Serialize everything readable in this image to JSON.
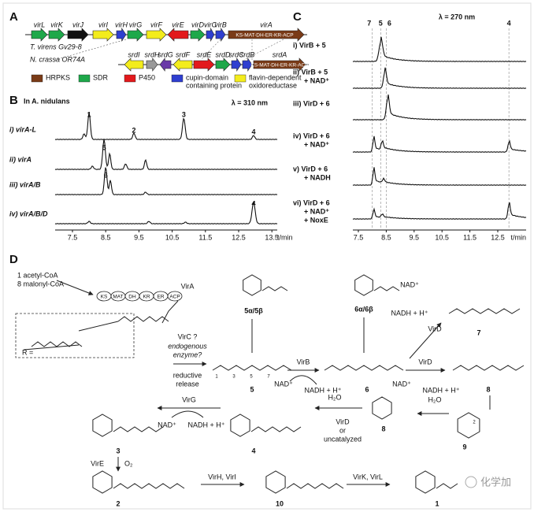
{
  "panel_a": {
    "label": "A",
    "cluster1": {
      "species": "T. virens Gv29-8",
      "genes": [
        "virL",
        "virK",
        "virJ",
        "virI",
        "virH",
        "virG",
        "virF",
        "virE",
        "virD",
        "virC",
        "virB",
        "virA"
      ],
      "domains": "KS-MAT-DH-ER-KR-ACP"
    },
    "cluster2": {
      "species": "N. crassa OR74A",
      "genes": [
        "srdI",
        "srdH",
        "srdG",
        "srdF",
        "srdE",
        "srdD",
        "srdC",
        "srdB",
        "srdA"
      ],
      "domains": "KS-MAT-DH-ER-KR-ACP"
    },
    "legend": [
      [
        "HRPKS"
      ],
      [
        "SDR"
      ],
      [
        "P450"
      ],
      [
        "cupin-domain",
        "containing protein"
      ],
      [
        "flavin-dependent",
        "oxidoreductase"
      ]
    ]
  },
  "panel_b": {
    "label": "B",
    "title": "In A. nidulans",
    "wavelength": "λ = 310 nm",
    "traces": [
      "i) virA-L",
      "ii) virA",
      "iii) virA/B",
      "iv) virA/B/D"
    ],
    "peaks": [
      "1",
      "2",
      "3",
      "4",
      "5",
      "6",
      "4"
    ],
    "ticks": [
      "7.5",
      "8.5",
      "9.5",
      "10.5",
      "11.5",
      "12.5",
      "13.5"
    ],
    "axis": "t/min"
  },
  "panel_c": {
    "label": "C",
    "wavelength": "λ = 270 nm",
    "peaks": [
      "7",
      "5",
      "6",
      "4"
    ],
    "traces": [
      [
        "i) VirB + 5"
      ],
      [
        "ii) VirB + 5",
        "+ NAD⁺"
      ],
      [
        "iii) VirD + 6"
      ],
      [
        "iv) VirD + 6",
        "+ NAD⁺"
      ],
      [
        "v) VirD + 6",
        "+ NADH"
      ],
      [
        "vi) VirD + 6",
        "+ NAD⁺",
        "+ NoxE"
      ]
    ],
    "ticks": [
      "7.5",
      "8.5",
      "9.5",
      "10.5",
      "11.5",
      "12.5"
    ],
    "axis": "t/min"
  },
  "panel_d": {
    "label": "D",
    "starter": [
      "1 acetyl-CoA",
      "8 malonyl-CoA"
    ],
    "pks": "VirA",
    "domains": [
      "KS",
      "MAT",
      "DH",
      "KR",
      "ER",
      "ACP"
    ],
    "r_label": "R =",
    "virc": [
      "VirC ?",
      "endogenous",
      "enzyme?"
    ],
    "release": [
      "reductive",
      "release"
    ],
    "compounds": [
      "5α/5β",
      "6α/6β",
      "7",
      "5",
      "6",
      "8",
      "9",
      "8",
      "4",
      "3",
      "2",
      "10",
      "1"
    ],
    "atoms": [
      "1",
      "3",
      "5",
      "7",
      "2"
    ],
    "steps": {
      "virb": [
        "VirB",
        "NAD⁺",
        "NADH + H⁺"
      ],
      "vird1": [
        "VirD",
        "NAD⁺",
        "NADH + H⁺"
      ],
      "vird2": [
        "NAD⁺",
        "NADH + H⁺",
        "VirD"
      ],
      "water": [
        "H₂O",
        "H₂O"
      ],
      "cyclize": [
        "VirD",
        "or",
        "uncatalyzed"
      ],
      "virg": [
        "VirG",
        "NAD⁺",
        "NADH + H⁺"
      ],
      "vire": [
        "VirE",
        "O₂"
      ],
      "virhi": "VirH, VirI",
      "virkl": "VirK, VirL"
    },
    "watermark": "化学加"
  }
}
